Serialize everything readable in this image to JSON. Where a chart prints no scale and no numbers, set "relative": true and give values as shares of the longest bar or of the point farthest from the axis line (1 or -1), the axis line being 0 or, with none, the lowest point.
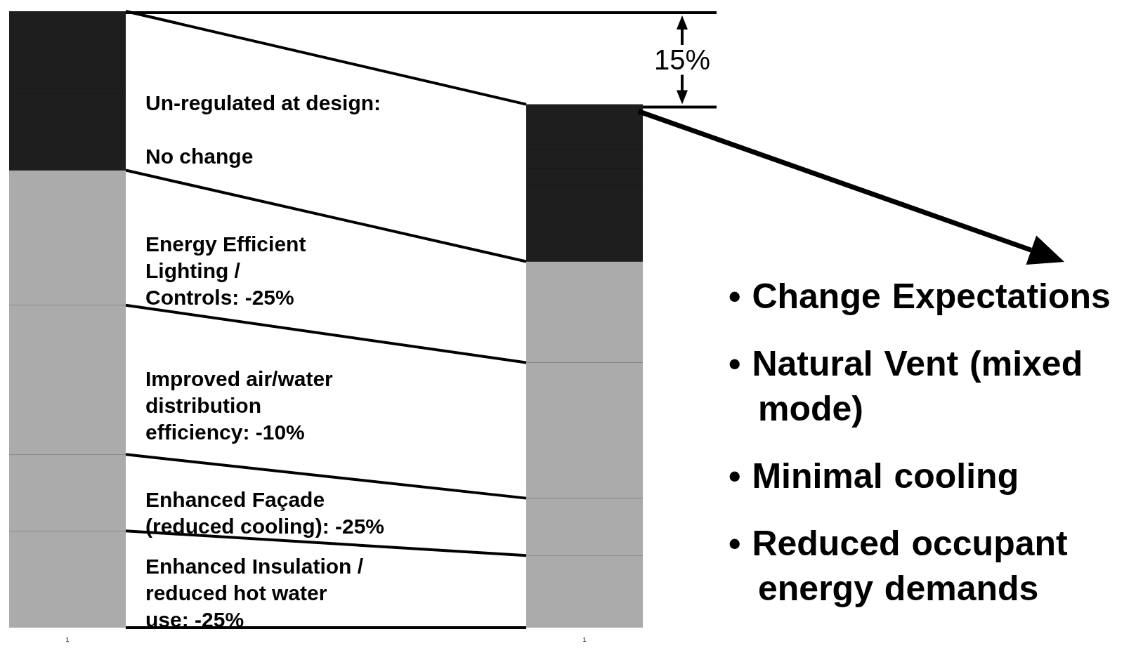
{
  "chart_data": {
    "type": "bar",
    "stacked": true,
    "relative": true,
    "categories": [
      "1",
      "1"
    ],
    "series": [
      {
        "color": "#ababab",
        "values": [
          0.157,
          0.117
        ]
      },
      {
        "color": "#ababab",
        "values": [
          0.124,
          0.093
        ]
      },
      {
        "color": "#ababab",
        "values": [
          0.242,
          0.22
        ]
      },
      {
        "color": "#ababab",
        "values": [
          0.219,
          0.164
        ]
      },
      {
        "color": "#1e1e1e",
        "values": [
          0.125,
          0.124
        ]
      },
      {
        "color": "#1e1e1e",
        "values": [
          0.026,
          0.026
        ]
      },
      {
        "color": "#1e1e1e",
        "values": [
          0.034,
          0.032
        ]
      },
      {
        "color": "#1e1e1e",
        "values": [
          0.073,
          0.073
        ]
      }
    ],
    "annotations": [
      "Un-regulated at design:\n\nNo change",
      "Energy Efficient\nLighting /\nControls:  -25%",
      "Improved air/water\ndistribution\nefficiency:  -10%",
      "Enhanced Façade\n(reduced cooling): -25%",
      "Enhanced Insulation /\nreduced hot water\nuse:  -25%",
      "15%",
      "• Change Expectations",
      "• Natural Vent (mixed mode)",
      "• Minimal cooling",
      "• Reduced occupant energy demands"
    ]
  }
}
